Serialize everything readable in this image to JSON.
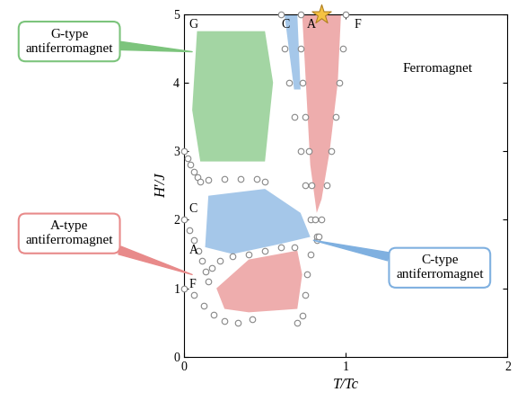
{
  "chart_data": {
    "type": "phase_diagram",
    "xlabel": "T/Tc",
    "ylabel": "H′/J",
    "xlim": [
      0,
      2
    ],
    "ylim": [
      0,
      5
    ],
    "xticks": [
      0,
      1,
      2
    ],
    "yticks": [
      0,
      1,
      2,
      3,
      4,
      5
    ],
    "marker": "o",
    "color": "#888888",
    "boundaries": [
      {
        "x": [
          0.0,
          0.02,
          0.04,
          0.06,
          0.08,
          0.1
        ],
        "y": [
          3.0,
          2.9,
          2.8,
          2.7,
          2.62,
          2.55
        ]
      },
      {
        "x": [
          0.15,
          0.25,
          0.35,
          0.45,
          0.5
        ],
        "y": [
          2.58,
          2.6,
          2.6,
          2.6,
          2.55
        ]
      },
      {
        "x": [
          0.0,
          0.03,
          0.06,
          0.09,
          0.11,
          0.13,
          0.15
        ],
        "y": [
          2.0,
          1.85,
          1.7,
          1.55,
          1.4,
          1.25,
          1.1
        ]
      },
      {
        "x": [
          0.17,
          0.22,
          0.3,
          0.4,
          0.5,
          0.6,
          0.68
        ],
        "y": [
          1.3,
          1.4,
          1.47,
          1.5,
          1.55,
          1.6,
          1.6
        ]
      },
      {
        "x": [
          0.0,
          0.06,
          0.12,
          0.18,
          0.25,
          0.33,
          0.42
        ],
        "y": [
          1.0,
          0.9,
          0.75,
          0.62,
          0.52,
          0.5,
          0.55
        ]
      },
      {
        "x": [
          0.82,
          0.78,
          0.76,
          0.75,
          0.73,
          0.7
        ],
        "y": [
          1.7,
          1.5,
          1.2,
          0.9,
          0.6,
          0.5
        ]
      },
      {
        "x": [
          0.6,
          0.62,
          0.65,
          0.68,
          0.72,
          0.75,
          0.78,
          0.82
        ],
        "y": [
          5.0,
          4.5,
          4.0,
          3.5,
          3.0,
          2.5,
          2.0,
          1.75
        ]
      },
      {
        "x": [
          0.72,
          0.72,
          0.73,
          0.75,
          0.77,
          0.79,
          0.81
        ],
        "y": [
          5.0,
          4.5,
          4.0,
          3.5,
          3.0,
          2.5,
          2.0
        ]
      },
      {
        "x": [
          1.0,
          0.98,
          0.96,
          0.94,
          0.91,
          0.88,
          0.85,
          0.83
        ],
        "y": [
          5.0,
          4.5,
          4.0,
          3.5,
          3.0,
          2.5,
          2.0,
          1.75
        ]
      }
    ],
    "regions": [
      {
        "phase": "G",
        "color": "#7cc47c",
        "x": [
          0.08,
          0.5,
          0.55,
          0.5,
          0.1,
          0.05
        ],
        "y": [
          4.75,
          4.75,
          4.0,
          2.85,
          2.85,
          3.6
        ]
      },
      {
        "phase": "C",
        "color": "#7fb0e0",
        "x": [
          0.62,
          0.7,
          0.72,
          0.68
        ],
        "y": [
          5.0,
          5.0,
          3.9,
          3.9
        ]
      },
      {
        "phase": "A",
        "color": "#e88a8a",
        "x": [
          0.73,
          0.97,
          0.95,
          0.9,
          0.85,
          0.82,
          0.78
        ],
        "y": [
          5.0,
          5.0,
          4.0,
          3.0,
          2.3,
          2.1,
          2.8
        ]
      },
      {
        "phase": "C",
        "color": "#7fb0e0",
        "x": [
          0.15,
          0.5,
          0.72,
          0.78,
          0.6,
          0.3,
          0.13
        ],
        "y": [
          2.35,
          2.45,
          2.1,
          1.75,
          1.65,
          1.5,
          1.6
        ]
      },
      {
        "phase": "A",
        "color": "#e88a8a",
        "x": [
          0.2,
          0.4,
          0.7,
          0.73,
          0.7,
          0.4,
          0.25
        ],
        "y": [
          1.0,
          1.42,
          1.55,
          1.2,
          0.7,
          0.65,
          0.7
        ]
      }
    ],
    "phase_labels": [
      {
        "text": "G",
        "x": 0.03,
        "y": 4.85
      },
      {
        "text": "C",
        "x": 0.6,
        "y": 4.85
      },
      {
        "text": "A",
        "x": 0.76,
        "y": 4.85
      },
      {
        "text": "F",
        "x": 1.05,
        "y": 4.85
      },
      {
        "text": "C",
        "x": 0.03,
        "y": 2.15
      },
      {
        "text": "A",
        "x": 0.03,
        "y": 1.55
      },
      {
        "text": "F",
        "x": 0.03,
        "y": 1.05
      }
    ],
    "callouts": [
      {
        "text": "G-type\nantiferromagnet",
        "x": -0.71,
        "y": 4.6,
        "target_x": 0.05,
        "target_y": 4.45,
        "color": "#7cc47c"
      },
      {
        "text": "A-type\nantiferromagnet",
        "x": -0.71,
        "y": 1.8,
        "target_x": 0.05,
        "target_y": 1.2,
        "color": "#e88a8a"
      },
      {
        "text": "C-type\nantiferromagnet",
        "x": 1.58,
        "y": 1.3,
        "target_x": 0.8,
        "target_y": 1.7,
        "color": "#7fb0e0"
      }
    ],
    "annotations": [
      {
        "text": "Ferromagnet",
        "x": 1.57,
        "y": 4.2
      }
    ],
    "star": {
      "x": 0.85,
      "y": 5.0,
      "color": "#f5c242"
    }
  }
}
